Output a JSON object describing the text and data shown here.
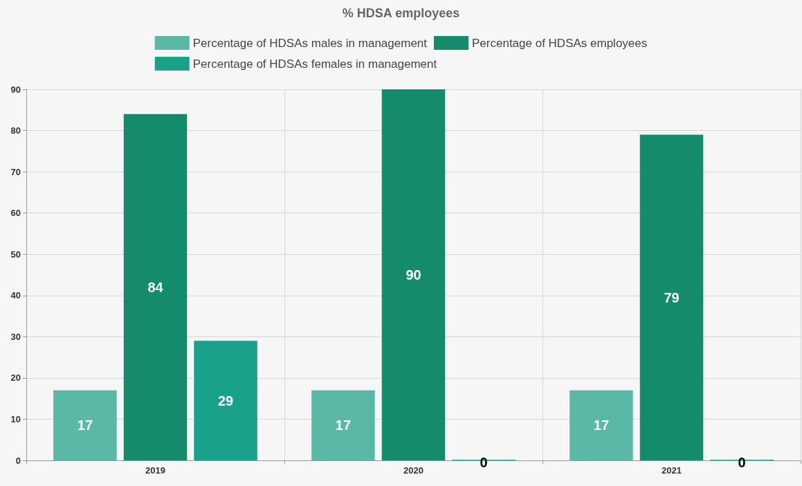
{
  "chart_data": {
    "type": "bar",
    "title": "% HDSA employees",
    "categories": [
      "2019",
      "2020",
      "2021"
    ],
    "series": [
      {
        "name": "Percentage of HDSAs males in management",
        "color": "#5bb8a6",
        "values": [
          17,
          17,
          17
        ]
      },
      {
        "name": "Percentage of HDSAs employees",
        "color": "#148c6c",
        "values": [
          84,
          90,
          79
        ]
      },
      {
        "name": "Percentage of HDSAs females in management",
        "color": "#19a189",
        "values": [
          29,
          0,
          0
        ]
      }
    ],
    "ylim": [
      0,
      90
    ],
    "yticks": [
      0,
      10,
      20,
      30,
      40,
      50,
      60,
      70,
      80,
      90
    ],
    "grid": true,
    "legend": "top",
    "data_labels": true
  }
}
